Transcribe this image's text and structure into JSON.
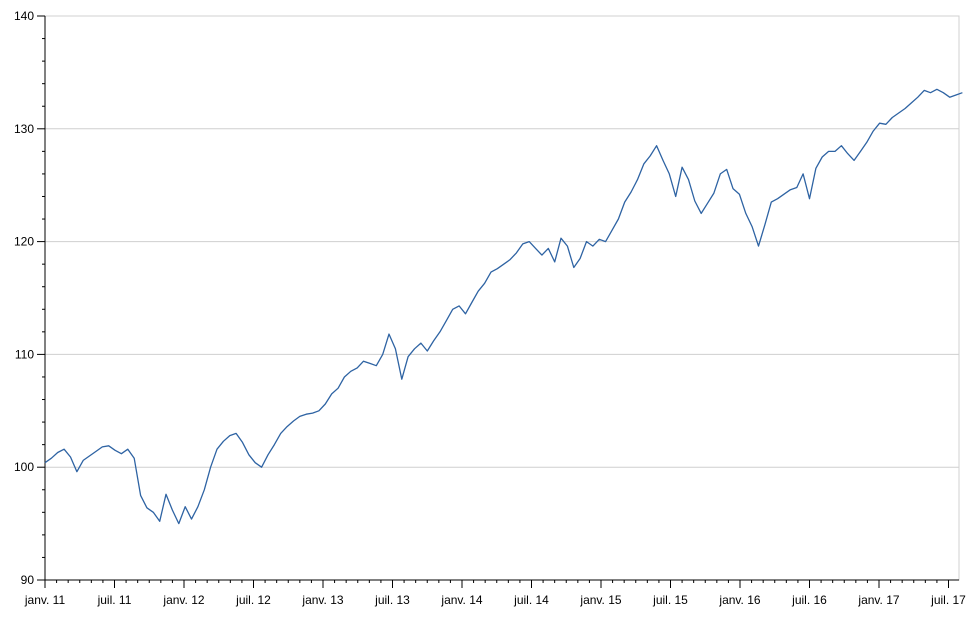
{
  "chart_data": {
    "type": "line",
    "title": "",
    "xlabel": "",
    "ylabel": "",
    "ylim": [
      90,
      140
    ],
    "yticks": [
      90,
      100,
      110,
      120,
      130,
      140
    ],
    "xticks": [
      "janv. 11",
      "juil. 11",
      "janv. 12",
      "juil. 12",
      "janv. 13",
      "juil. 13",
      "janv. 14",
      "juil. 14",
      "janv. 15",
      "juil. 15",
      "janv. 16",
      "juil. 16",
      "janv. 17",
      "juil. 17"
    ],
    "grid": true,
    "line_color": "#2e63a3",
    "x_start_tick": 0,
    "x_end_tick": 13.2,
    "series": [
      {
        "name": "",
        "values": [
          100.4,
          100.8,
          101.3,
          101.6,
          100.9,
          99.6,
          100.6,
          101.0,
          101.4,
          101.8,
          101.9,
          101.5,
          101.2,
          101.6,
          100.8,
          97.5,
          96.4,
          96.0,
          95.2,
          97.6,
          96.2,
          95.0,
          96.5,
          95.4,
          96.5,
          98.0,
          100.0,
          101.6,
          102.3,
          102.8,
          103.0,
          102.2,
          101.1,
          100.4,
          100.0,
          101.1,
          102.0,
          103.0,
          103.6,
          104.1,
          104.5,
          104.7,
          104.8,
          105.0,
          105.6,
          106.5,
          107.0,
          108.0,
          108.5,
          108.8,
          109.4,
          109.2,
          109.0,
          110.0,
          111.8,
          110.5,
          107.8,
          109.8,
          110.5,
          111.0,
          110.3,
          111.2,
          112.0,
          113.0,
          114.0,
          114.3,
          113.6,
          114.6,
          115.6,
          116.3,
          117.3,
          117.6,
          118.0,
          118.4,
          119.0,
          119.8,
          120.0,
          119.4,
          118.8,
          119.4,
          118.2,
          120.3,
          119.6,
          117.7,
          118.5,
          120.0,
          119.6,
          120.2,
          120.0,
          121.0,
          122.0,
          123.5,
          124.4,
          125.5,
          126.9,
          127.6,
          128.5,
          127.2,
          126.0,
          124.0,
          126.6,
          125.5,
          123.6,
          122.5,
          123.4,
          124.3,
          126.0,
          126.4,
          124.7,
          124.2,
          122.5,
          121.3,
          119.6,
          121.5,
          123.5,
          123.8,
          124.2,
          124.6,
          124.8,
          126.0,
          123.8,
          126.5,
          127.5,
          128.0,
          128.0,
          128.5,
          127.8,
          127.2,
          128.0,
          128.8,
          129.8,
          130.5,
          130.4,
          131.0,
          131.4,
          131.8,
          132.3,
          132.8,
          133.4,
          133.2,
          133.5,
          133.2,
          132.8,
          133.0,
          133.2
        ]
      }
    ]
  }
}
